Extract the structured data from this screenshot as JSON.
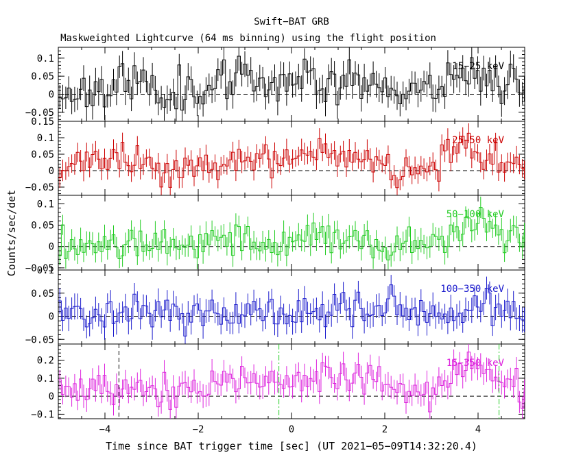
{
  "chart_data": {
    "type": "line",
    "title": "Swift−BAT GRB",
    "subtitle": "Maskweighted Lightcurve (64 ms binning) using the flight position",
    "xlabel": "Time since BAT trigger time [sec] (UT 2021−05−09T14:32:20.4)",
    "ylabel": "Counts/sec/det",
    "xlim": [
      -5,
      5
    ],
    "x_ticks": [
      -4,
      -2,
      0,
      2,
      4
    ],
    "x_tick_labels": [
      "−4",
      "−2",
      "0",
      "2",
      "4"
    ],
    "bin_width_sec": 0.064,
    "marker_lines": [
      {
        "x": -3.7,
        "color": "#000000",
        "style": "dashed",
        "panels": [
          4
        ]
      },
      {
        "x": -0.27,
        "color": "#22cc22",
        "style": "dash-dot",
        "panels": [
          4
        ]
      },
      {
        "x": 4.45,
        "color": "#22cc22",
        "style": "dash-dot",
        "panels": [
          4
        ]
      }
    ],
    "panels": [
      {
        "name": "15−25 keV",
        "band": "15-25 keV",
        "color": "#000000",
        "ylim": [
          -0.075,
          0.13
        ],
        "y_ticks": [
          -0.05,
          0,
          0.05,
          0.1
        ],
        "y_tick_labels": [
          "−0.05",
          "0",
          "0.05",
          "0.1"
        ],
        "error": 0.035,
        "profile": [
          [
            -5,
            0.0
          ],
          [
            -3.6,
            0.03
          ],
          [
            -2.5,
            0.01
          ],
          [
            -1.5,
            0.03
          ],
          [
            -0.5,
            0.04
          ],
          [
            0.2,
            0.05
          ],
          [
            1,
            0.04
          ],
          [
            1.8,
            0.03
          ],
          [
            2.5,
            0.01
          ],
          [
            3,
            0.02
          ],
          [
            3.5,
            0.06
          ],
          [
            4.3,
            0.05
          ],
          [
            5,
            0.02
          ]
        ],
        "noise": 0.03,
        "seed": 11
      },
      {
        "name": "25−50 keV",
        "band": "25-50 keV",
        "color": "#cc0000",
        "ylim": [
          -0.075,
          0.15
        ],
        "y_ticks": [
          -0.05,
          0,
          0.05,
          0.1,
          0.15
        ],
        "y_tick_labels": [
          "−0.05",
          "0",
          "0.05",
          "0.1",
          "0.15"
        ],
        "error": 0.03,
        "profile": [
          [
            -5,
            0.005
          ],
          [
            -4,
            0.03
          ],
          [
            -2.5,
            0.01
          ],
          [
            -1,
            0.02
          ],
          [
            0,
            0.03
          ],
          [
            0.8,
            0.05
          ],
          [
            1.5,
            0.035
          ],
          [
            2.5,
            0.005
          ],
          [
            3,
            0.02
          ],
          [
            3.6,
            0.06
          ],
          [
            4.2,
            0.04
          ],
          [
            5,
            0.02
          ]
        ],
        "noise": 0.025,
        "seed": 23
      },
      {
        "name": "50−100 keV",
        "band": "50-100 keV",
        "color": "#22cc22",
        "ylim": [
          -0.055,
          0.12
        ],
        "y_ticks": [
          -0.05,
          0,
          0.05,
          0.1
        ],
        "y_tick_labels": [
          "−0.05",
          "0",
          "0.05",
          "0.1"
        ],
        "error": 0.025,
        "profile": [
          [
            -5,
            0.0
          ],
          [
            -4,
            0.015
          ],
          [
            -2.5,
            0.01
          ],
          [
            -1,
            0.015
          ],
          [
            0,
            0.01
          ],
          [
            1,
            0.02
          ],
          [
            2,
            0.0
          ],
          [
            3,
            0.01
          ],
          [
            3.5,
            0.03
          ],
          [
            4,
            0.06
          ],
          [
            4.5,
            0.03
          ],
          [
            5,
            0.01
          ]
        ],
        "noise": 0.02,
        "seed": 37
      },
      {
        "name": "100−350 keV",
        "band": "100-350 keV",
        "color": "#1a1acc",
        "ylim": [
          -0.06,
          0.1
        ],
        "y_ticks": [
          -0.05,
          0,
          0.05,
          0.1
        ],
        "y_tick_labels": [
          "−0.05",
          "0",
          "0.05",
          "0.1"
        ],
        "error": 0.025,
        "profile": [
          [
            -5,
            0.0
          ],
          [
            -3,
            0.01
          ],
          [
            -1,
            0.005
          ],
          [
            0.5,
            0.01
          ],
          [
            1,
            0.02
          ],
          [
            2,
            0.015
          ],
          [
            2.15,
            0.07
          ],
          [
            2.3,
            0.01
          ],
          [
            3,
            0.0
          ],
          [
            4,
            0.01
          ],
          [
            5,
            0.0
          ]
        ],
        "noise": 0.02,
        "seed": 41
      },
      {
        "name": "15−350 keV",
        "band": "15-350 keV",
        "color": "#dd22dd",
        "ylim": [
          -0.125,
          0.29
        ],
        "y_ticks": [
          -0.1,
          0,
          0.1,
          0.2
        ],
        "y_tick_labels": [
          "−0.1",
          "0",
          "0.1",
          "0.2"
        ],
        "error": 0.06,
        "profile": [
          [
            -5,
            0.02
          ],
          [
            -3.6,
            0.06
          ],
          [
            -2.5,
            0.03
          ],
          [
            -1,
            0.07
          ],
          [
            0,
            0.08
          ],
          [
            0.8,
            0.12
          ],
          [
            1.5,
            0.09
          ],
          [
            2.5,
            0.02
          ],
          [
            3,
            0.04
          ],
          [
            3.6,
            0.16
          ],
          [
            4.2,
            0.15
          ],
          [
            4.6,
            0.05
          ],
          [
            5,
            0.06
          ]
        ],
        "noise": 0.05,
        "seed": 53
      }
    ]
  }
}
